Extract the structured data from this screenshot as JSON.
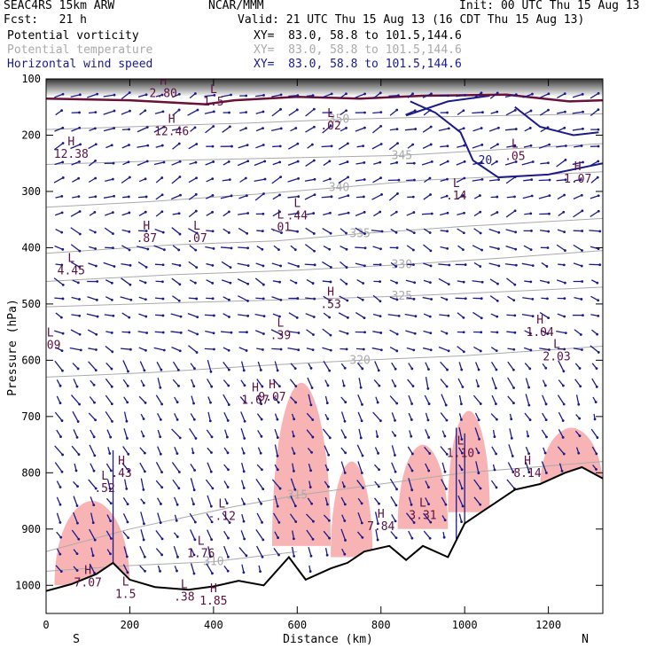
{
  "header": {
    "model": "SEAC4RS 15km ARW",
    "center": "NCAR/MMM",
    "init": "Init: 00 UTC Thu 15 Aug 13",
    "fcst": "Fcst:   21 h",
    "valid": "Valid: 21 UTC Thu 15 Aug 13 (16 CDT Thu 15 Aug 13)"
  },
  "fields": [
    {
      "name": "Potential vorticity",
      "xy": "XY=  83.0, 58.8 to 101.5,144.6",
      "color": "#000000"
    },
    {
      "name": "Potential temperature",
      "xy": "XY=  83.0, 58.8 to 101.5,144.6",
      "color": "#aaaaaa"
    },
    {
      "name": "Horizontal wind speed",
      "xy": "XY=  83.0, 58.8 to 101.5,144.6",
      "color": "#1a1a8c"
    }
  ],
  "chart_data": {
    "type": "cross-section",
    "xlabel": "Distance (km)",
    "ylabel": "Pressure (hPa)",
    "xlim": [
      0,
      1330
    ],
    "ylim": [
      1050,
      100
    ],
    "x_ticks": [
      0,
      200,
      400,
      600,
      800,
      1000,
      1200
    ],
    "y_ticks": [
      100,
      200,
      300,
      400,
      500,
      600,
      700,
      800,
      900,
      1000
    ],
    "end_labels": {
      "left": "S",
      "right": "N"
    },
    "theta_contours": [
      {
        "label": "350",
        "points": [
          [
            0,
            190
          ],
          [
            200,
            185
          ],
          [
            500,
            178
          ],
          [
            700,
            172
          ],
          [
            900,
            168
          ],
          [
            1100,
            165
          ],
          [
            1330,
            162
          ]
        ]
      },
      {
        "label": "345",
        "points": [
          [
            0,
            252
          ],
          [
            300,
            245
          ],
          [
            600,
            240
          ],
          [
            850,
            236
          ],
          [
            1100,
            225
          ],
          [
            1330,
            215
          ]
        ]
      },
      {
        "label": "340",
        "points": [
          [
            0,
            328
          ],
          [
            250,
            318
          ],
          [
            500,
            305
          ],
          [
            700,
            293
          ],
          [
            900,
            280
          ],
          [
            1330,
            265
          ]
        ]
      },
      {
        "label": "335",
        "points": [
          [
            0,
            410
          ],
          [
            300,
            395
          ],
          [
            550,
            388
          ],
          [
            750,
            375
          ],
          [
            1000,
            362
          ],
          [
            1330,
            348
          ]
        ]
      },
      {
        "label": "330",
        "points": [
          [
            0,
            460
          ],
          [
            300,
            448
          ],
          [
            600,
            440
          ],
          [
            850,
            430
          ],
          [
            1100,
            418
          ],
          [
            1330,
            405
          ]
        ]
      },
      {
        "label": "325",
        "points": [
          [
            0,
            505
          ],
          [
            300,
            498
          ],
          [
            600,
            492
          ],
          [
            850,
            486
          ],
          [
            1100,
            478
          ],
          [
            1330,
            470
          ]
        ]
      },
      {
        "label": "320",
        "points": [
          [
            0,
            630
          ],
          [
            250,
            622
          ],
          [
            500,
            610
          ],
          [
            750,
            600
          ],
          [
            1000,
            592
          ],
          [
            1330,
            575
          ]
        ]
      },
      {
        "label": "315",
        "points": [
          [
            0,
            940
          ],
          [
            200,
            900
          ],
          [
            450,
            860
          ],
          [
            600,
            840
          ],
          [
            800,
            820
          ],
          [
            1000,
            800
          ],
          [
            1330,
            780
          ]
        ]
      },
      {
        "label": "310",
        "points": [
          [
            0,
            975
          ],
          [
            200,
            965
          ],
          [
            400,
            958
          ],
          [
            600,
            940
          ]
        ]
      }
    ],
    "wind_contours": [
      {
        "label": "20",
        "points": [
          [
            870,
            140
          ],
          [
            930,
            160
          ],
          [
            990,
            195
          ],
          [
            1020,
            245
          ],
          [
            1080,
            275
          ],
          [
            1200,
            270
          ],
          [
            1330,
            250
          ]
        ]
      },
      {
        "label": "",
        "points": [
          [
            860,
            165
          ],
          [
            960,
            140
          ],
          [
            1060,
            130
          ]
        ]
      },
      {
        "label": "",
        "points": [
          [
            1120,
            150
          ],
          [
            1180,
            185
          ],
          [
            1260,
            200
          ],
          [
            1320,
            195
          ]
        ]
      }
    ],
    "pv_tropopause": [
      [
        0,
        135
      ],
      [
        200,
        138
      ],
      [
        380,
        145
      ],
      [
        450,
        138
      ],
      [
        600,
        132
      ],
      [
        750,
        135
      ],
      [
        900,
        130
      ],
      [
        1100,
        128
      ],
      [
        1250,
        140
      ],
      [
        1330,
        138
      ]
    ],
    "surface_pressure": [
      [
        0,
        1010
      ],
      [
        60,
        998
      ],
      [
        120,
        980
      ],
      [
        160,
        960
      ],
      [
        200,
        990
      ],
      [
        260,
        1003
      ],
      [
        340,
        1008
      ],
      [
        400,
        1002
      ],
      [
        460,
        992
      ],
      [
        520,
        1000
      ],
      [
        580,
        950
      ],
      [
        620,
        990
      ],
      [
        680,
        970
      ],
      [
        720,
        960
      ],
      [
        760,
        940
      ],
      [
        820,
        930
      ],
      [
        860,
        955
      ],
      [
        900,
        930
      ],
      [
        960,
        950
      ],
      [
        1000,
        890
      ],
      [
        1040,
        870
      ],
      [
        1080,
        850
      ],
      [
        1120,
        830
      ],
      [
        1180,
        820
      ],
      [
        1240,
        800
      ],
      [
        1280,
        790
      ],
      [
        1330,
        810
      ]
    ],
    "pv_shaded": [
      {
        "x0": 20,
        "x1": 200,
        "ptop": 850,
        "pbot": 1000
      },
      {
        "x0": 540,
        "x1": 680,
        "ptop": 640,
        "pbot": 930
      },
      {
        "x0": 680,
        "x1": 780,
        "ptop": 780,
        "pbot": 950
      },
      {
        "x0": 840,
        "x1": 960,
        "ptop": 750,
        "pbot": 900
      },
      {
        "x0": 960,
        "x1": 1060,
        "ptop": 690,
        "pbot": 870
      },
      {
        "x0": 1180,
        "x1": 1330,
        "ptop": 720,
        "pbot": 830
      }
    ],
    "extrema": [
      {
        "type": "H",
        "value": "2.80",
        "x": 280,
        "p": 110
      },
      {
        "type": "L",
        "value": "1.5",
        "x": 400,
        "p": 125
      },
      {
        "type": "H",
        "value": "12.46",
        "x": 300,
        "p": 178
      },
      {
        "type": "L",
        "value": ".02",
        "x": 680,
        "p": 168
      },
      {
        "type": "H",
        "value": "12.38",
        "x": 60,
        "p": 218
      },
      {
        "type": "L",
        "value": ".05",
        "x": 1120,
        "p": 222
      },
      {
        "type": "H",
        "value": "1.07",
        "x": 1270,
        "p": 262
      },
      {
        "type": "L",
        "value": ".14",
        "x": 980,
        "p": 292
      },
      {
        "type": "L",
        "value": ".44",
        "x": 600,
        "p": 328
      },
      {
        "type": "L",
        "value": ".01",
        "x": 560,
        "p": 348
      },
      {
        "type": "H",
        "value": ".87",
        "x": 240,
        "p": 368
      },
      {
        "type": "L",
        "value": ".07",
        "x": 360,
        "p": 368
      },
      {
        "type": "L",
        "value": "4.45",
        "x": 60,
        "p": 425
      },
      {
        "type": "H",
        "value": ".53",
        "x": 680,
        "p": 485
      },
      {
        "type": "L",
        "value": ".39",
        "x": 560,
        "p": 540
      },
      {
        "type": "H",
        "value": "1.04",
        "x": 1180,
        "p": 535
      },
      {
        "type": "L",
        "value": "2.03",
        "x": 1220,
        "p": 578
      },
      {
        "type": "L",
        "value": ".09",
        "x": 10,
        "p": 558
      },
      {
        "type": "H",
        "value": "1.67",
        "x": 500,
        "p": 655
      },
      {
        "type": "H",
        "value": "9.07",
        "x": 540,
        "p": 650
      },
      {
        "type": "L",
        "value": "1.10",
        "x": 990,
        "p": 750
      },
      {
        "type": "H",
        "value": ".43",
        "x": 180,
        "p": 785
      },
      {
        "type": "H",
        "value": "8.14",
        "x": 1150,
        "p": 785
      },
      {
        "type": "L",
        "value": ".52",
        "x": 140,
        "p": 812
      },
      {
        "type": "L",
        "value": "-.12",
        "x": 420,
        "p": 862
      },
      {
        "type": "L",
        "value": "3.31",
        "x": 900,
        "p": 860
      },
      {
        "type": "H",
        "value": "7.84",
        "x": 800,
        "p": 880
      },
      {
        "type": "L",
        "value": "1.76",
        "x": 370,
        "p": 928
      },
      {
        "type": "H",
        "value": "7.07",
        "x": 100,
        "p": 980
      },
      {
        "type": "L",
        "value": "1.5",
        "x": 190,
        "p": 1000
      },
      {
        "type": "L",
        "value": ".38",
        "x": 330,
        "p": 1005
      },
      {
        "type": "H",
        "value": "1.85",
        "x": 400,
        "p": 1012
      }
    ]
  }
}
